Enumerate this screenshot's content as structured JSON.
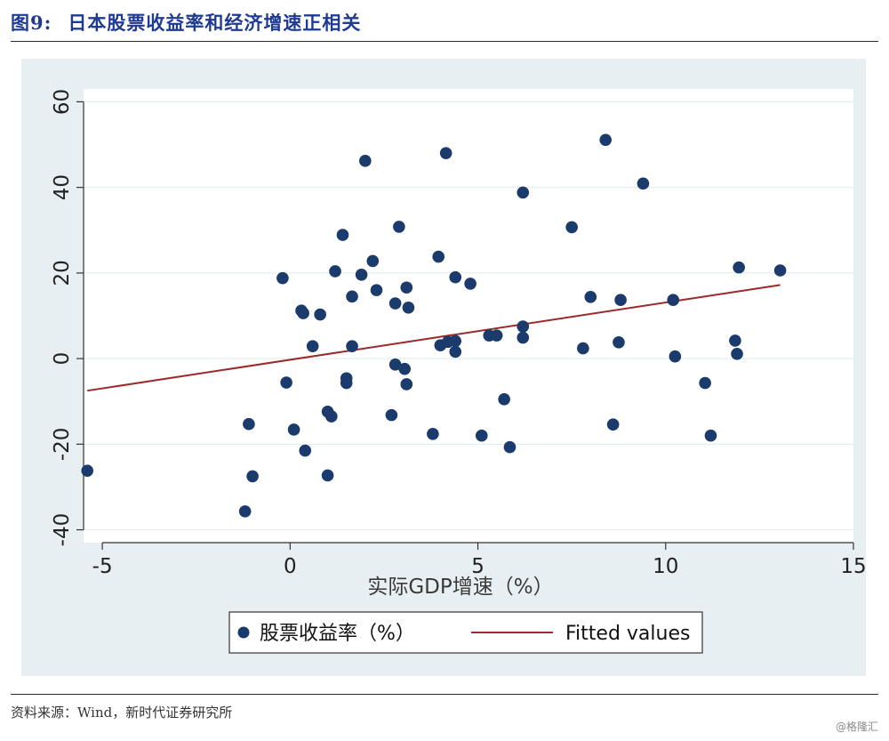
{
  "header": {
    "figure_label": "图9:",
    "figure_title": "日本股票收益率和经济增速正相关"
  },
  "footer": {
    "source": "资料来源：Wind，新时代证券研究所",
    "watermark": "@格隆汇"
  },
  "colors": {
    "title": "#1f3a93",
    "outer_bg": "#e8eff2",
    "plot_bg": "#ffffff",
    "scatter": "#1a3b6b",
    "fit_line": "#9c2a2a",
    "grid": "#e6eef2"
  },
  "chart_data": {
    "type": "scatter",
    "title": "",
    "xlabel": "实际GDP增速（%）",
    "ylabel": "",
    "xlim": [
      -5.5,
      15
    ],
    "ylim": [
      -43,
      63
    ],
    "x_ticks": [
      -5,
      0,
      5,
      10,
      15
    ],
    "y_ticks": [
      -40,
      -20,
      0,
      20,
      40,
      60
    ],
    "grid": "horizontal",
    "legend_position": "bottom",
    "legend": [
      "股票收益率（%）",
      "Fitted values"
    ],
    "series": [
      {
        "name": "股票收益率（%）",
        "type": "scatter",
        "points": [
          [
            -5.4,
            -26.2
          ],
          [
            -1.2,
            -35.7
          ],
          [
            -1.1,
            -15.3
          ],
          [
            -1.0,
            -27.5
          ],
          [
            -0.2,
            18.8
          ],
          [
            -0.1,
            -5.6
          ],
          [
            0.1,
            -16.6
          ],
          [
            0.3,
            11.2
          ],
          [
            0.35,
            10.6
          ],
          [
            0.4,
            -21.5
          ],
          [
            0.6,
            2.9
          ],
          [
            0.8,
            10.3
          ],
          [
            1.0,
            -12.4
          ],
          [
            1.0,
            -27.3
          ],
          [
            1.1,
            -13.5
          ],
          [
            1.2,
            20.4
          ],
          [
            1.4,
            28.9
          ],
          [
            1.5,
            -5.7
          ],
          [
            1.5,
            -4.6
          ],
          [
            1.65,
            14.5
          ],
          [
            1.65,
            2.9
          ],
          [
            1.9,
            19.6
          ],
          [
            2.0,
            46.2
          ],
          [
            2.2,
            22.8
          ],
          [
            2.3,
            16.0
          ],
          [
            2.7,
            -13.2
          ],
          [
            2.8,
            12.9
          ],
          [
            2.8,
            -1.4
          ],
          [
            2.9,
            30.8
          ],
          [
            3.05,
            -2.4
          ],
          [
            3.1,
            16.6
          ],
          [
            3.1,
            -6.0
          ],
          [
            3.15,
            11.9
          ],
          [
            3.8,
            -17.6
          ],
          [
            3.95,
            23.8
          ],
          [
            4.0,
            3.1
          ],
          [
            4.15,
            48.0
          ],
          [
            4.2,
            3.9
          ],
          [
            4.4,
            19.0
          ],
          [
            4.4,
            4.1
          ],
          [
            4.4,
            1.6
          ],
          [
            4.8,
            17.5
          ],
          [
            5.1,
            -18.0
          ],
          [
            5.3,
            5.4
          ],
          [
            5.5,
            5.4
          ],
          [
            5.7,
            -9.5
          ],
          [
            5.85,
            -20.7
          ],
          [
            6.2,
            38.8
          ],
          [
            6.2,
            7.5
          ],
          [
            6.2,
            4.9
          ],
          [
            7.5,
            30.7
          ],
          [
            7.8,
            2.4
          ],
          [
            8.0,
            14.4
          ],
          [
            8.4,
            51.1
          ],
          [
            8.6,
            -15.4
          ],
          [
            8.75,
            3.8
          ],
          [
            8.8,
            13.7
          ],
          [
            9.4,
            40.9
          ],
          [
            10.2,
            13.7
          ],
          [
            10.25,
            0.5
          ],
          [
            11.05,
            -5.7
          ],
          [
            11.2,
            -18.0
          ],
          [
            11.85,
            4.2
          ],
          [
            11.9,
            1.1
          ],
          [
            11.95,
            21.3
          ],
          [
            13.05,
            20.6
          ]
        ]
      },
      {
        "name": "Fitted values",
        "type": "line",
        "points": [
          [
            -5.4,
            -7.5
          ],
          [
            13.05,
            17.2
          ]
        ]
      }
    ]
  }
}
